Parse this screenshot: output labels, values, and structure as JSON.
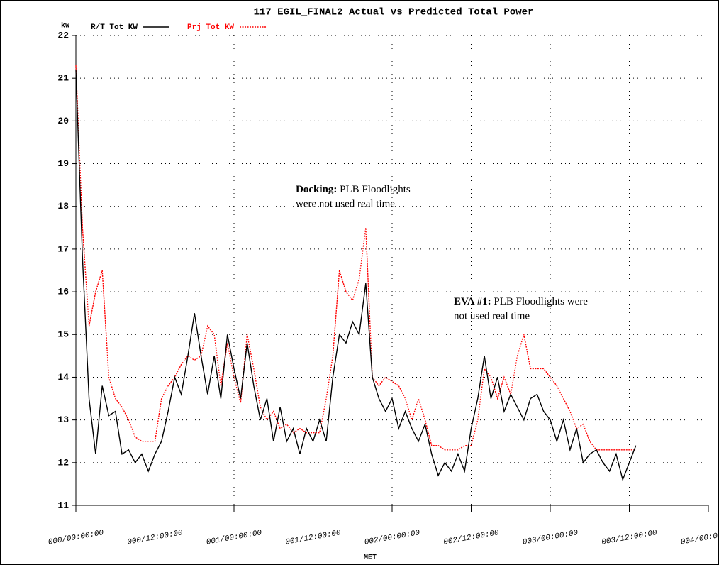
{
  "chart_data": {
    "type": "line",
    "title": "117 EGIL_FINAL2 Actual vs Predicted Total Power",
    "y_label": "kW",
    "x_label": "MET",
    "x": [
      0,
      1,
      2,
      3,
      4,
      5,
      6,
      7,
      8,
      9,
      10,
      11,
      12,
      13,
      14,
      15,
      16,
      17,
      18,
      19,
      20,
      21,
      22,
      23,
      24,
      25,
      26,
      27,
      28,
      29,
      30,
      31,
      32,
      33,
      34,
      35,
      36,
      37,
      38,
      39,
      40,
      41,
      42,
      43,
      44,
      45,
      46,
      47,
      48,
      49,
      50,
      51,
      52,
      53,
      54,
      55,
      56,
      57,
      58,
      59,
      60,
      61,
      62,
      63,
      64,
      65,
      66,
      67,
      68,
      69,
      70,
      71,
      72,
      73,
      74,
      75,
      76,
      77,
      78,
      79,
      80,
      81,
      82,
      83,
      84,
      85
    ],
    "series": [
      {
        "name": "R/T Tot KW",
        "color": "#000000",
        "line_style": "solid",
        "values": [
          21.2,
          16.8,
          13.5,
          12.2,
          13.8,
          13.1,
          13.2,
          12.2,
          12.3,
          12.0,
          12.2,
          11.8,
          12.2,
          12.5,
          13.2,
          14.0,
          13.6,
          14.5,
          15.5,
          14.5,
          13.6,
          14.5,
          13.5,
          15.0,
          14.2,
          13.5,
          14.8,
          13.8,
          13.0,
          13.5,
          12.5,
          13.3,
          12.5,
          12.8,
          12.2,
          12.8,
          12.5,
          13.0,
          12.5,
          14.0,
          15.0,
          14.8,
          15.3,
          15.0,
          16.2,
          14.0,
          13.5,
          13.2,
          13.5,
          12.8,
          13.2,
          12.8,
          12.5,
          12.9,
          12.2,
          11.7,
          12.0,
          11.8,
          12.2,
          11.8,
          12.8,
          13.5,
          14.5,
          13.5,
          14.0,
          13.2,
          13.6,
          13.3,
          13.0,
          13.5,
          13.6,
          13.2,
          13.0,
          12.5,
          13.0,
          12.3,
          12.8,
          12.0,
          12.2,
          12.3,
          12.0,
          11.8,
          12.2,
          11.6,
          12.0,
          12.4
        ]
      },
      {
        "name": "Prj Tot KW",
        "color": "#ff0000",
        "line_style": "dotted",
        "values": [
          21.3,
          17.5,
          15.2,
          16.0,
          16.5,
          14.0,
          13.5,
          13.3,
          13.0,
          12.6,
          12.5,
          12.5,
          12.5,
          13.5,
          13.8,
          14.0,
          14.3,
          14.5,
          14.4,
          14.5,
          15.2,
          15.0,
          13.8,
          14.8,
          14.0,
          13.4,
          15.0,
          14.2,
          13.3,
          13.0,
          13.2,
          12.8,
          12.9,
          12.7,
          12.8,
          12.7,
          12.7,
          12.7,
          13.5,
          14.5,
          16.5,
          16.0,
          15.8,
          16.3,
          17.5,
          14.0,
          13.8,
          14.0,
          13.9,
          13.8,
          13.5,
          13.0,
          13.5,
          13.0,
          12.4,
          12.4,
          12.3,
          12.3,
          12.3,
          12.4,
          12.4,
          13.0,
          14.2,
          14.0,
          13.5,
          14.0,
          13.6,
          14.5,
          15.0,
          14.2,
          14.2,
          14.2,
          14.0,
          13.8,
          13.5,
          13.2,
          12.8,
          12.9,
          12.5,
          12.3,
          12.3,
          12.3,
          12.3,
          12.3,
          12.3,
          12.3
        ]
      }
    ],
    "xlim": [
      0,
      96
    ],
    "xticks": [
      {
        "value": 0,
        "label": "000/00:00:00"
      },
      {
        "value": 12,
        "label": "000/12:00:00"
      },
      {
        "value": 24,
        "label": "001/00:00:00"
      },
      {
        "value": 36,
        "label": "001/12:00:00"
      },
      {
        "value": 48,
        "label": "002/00:00:00"
      },
      {
        "value": 60,
        "label": "002/12:00:00"
      },
      {
        "value": 72,
        "label": "003/00:00:00"
      },
      {
        "value": 84,
        "label": "003/12:00:00"
      },
      {
        "value": 96,
        "label": "004/00:00:00"
      }
    ],
    "ylim": [
      11,
      22
    ],
    "yticks": [
      11,
      12,
      13,
      14,
      15,
      16,
      17,
      18,
      19,
      20,
      21,
      22
    ],
    "grid": true,
    "legend": "top",
    "annotations": [
      {
        "title": "Docking:",
        "lines": [
          "PLB Floodlights",
          "were not used real time"
        ]
      },
      {
        "title": "EVA #1:",
        "lines": [
          "PLB Floodlights were",
          "not used real time"
        ]
      }
    ]
  }
}
